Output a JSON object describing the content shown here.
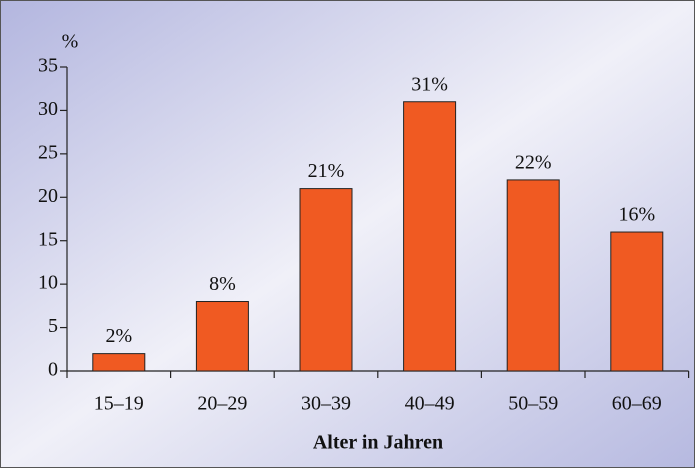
{
  "chart_data": {
    "type": "bar",
    "ylabel": "%",
    "xlabel": "Alter in Jahren",
    "categories": [
      "15–19",
      "20–29",
      "30–39",
      "40–49",
      "50–59",
      "60–69"
    ],
    "values": [
      2,
      8,
      21,
      31,
      22,
      16
    ],
    "value_labels": [
      "2%",
      "8%",
      "21%",
      "31%",
      "22%",
      "16%"
    ],
    "color": "#f05a22",
    "ylim": [
      0,
      35
    ],
    "yticks": [
      0,
      5,
      10,
      15,
      20,
      25,
      30,
      35
    ],
    "grid": false
  }
}
